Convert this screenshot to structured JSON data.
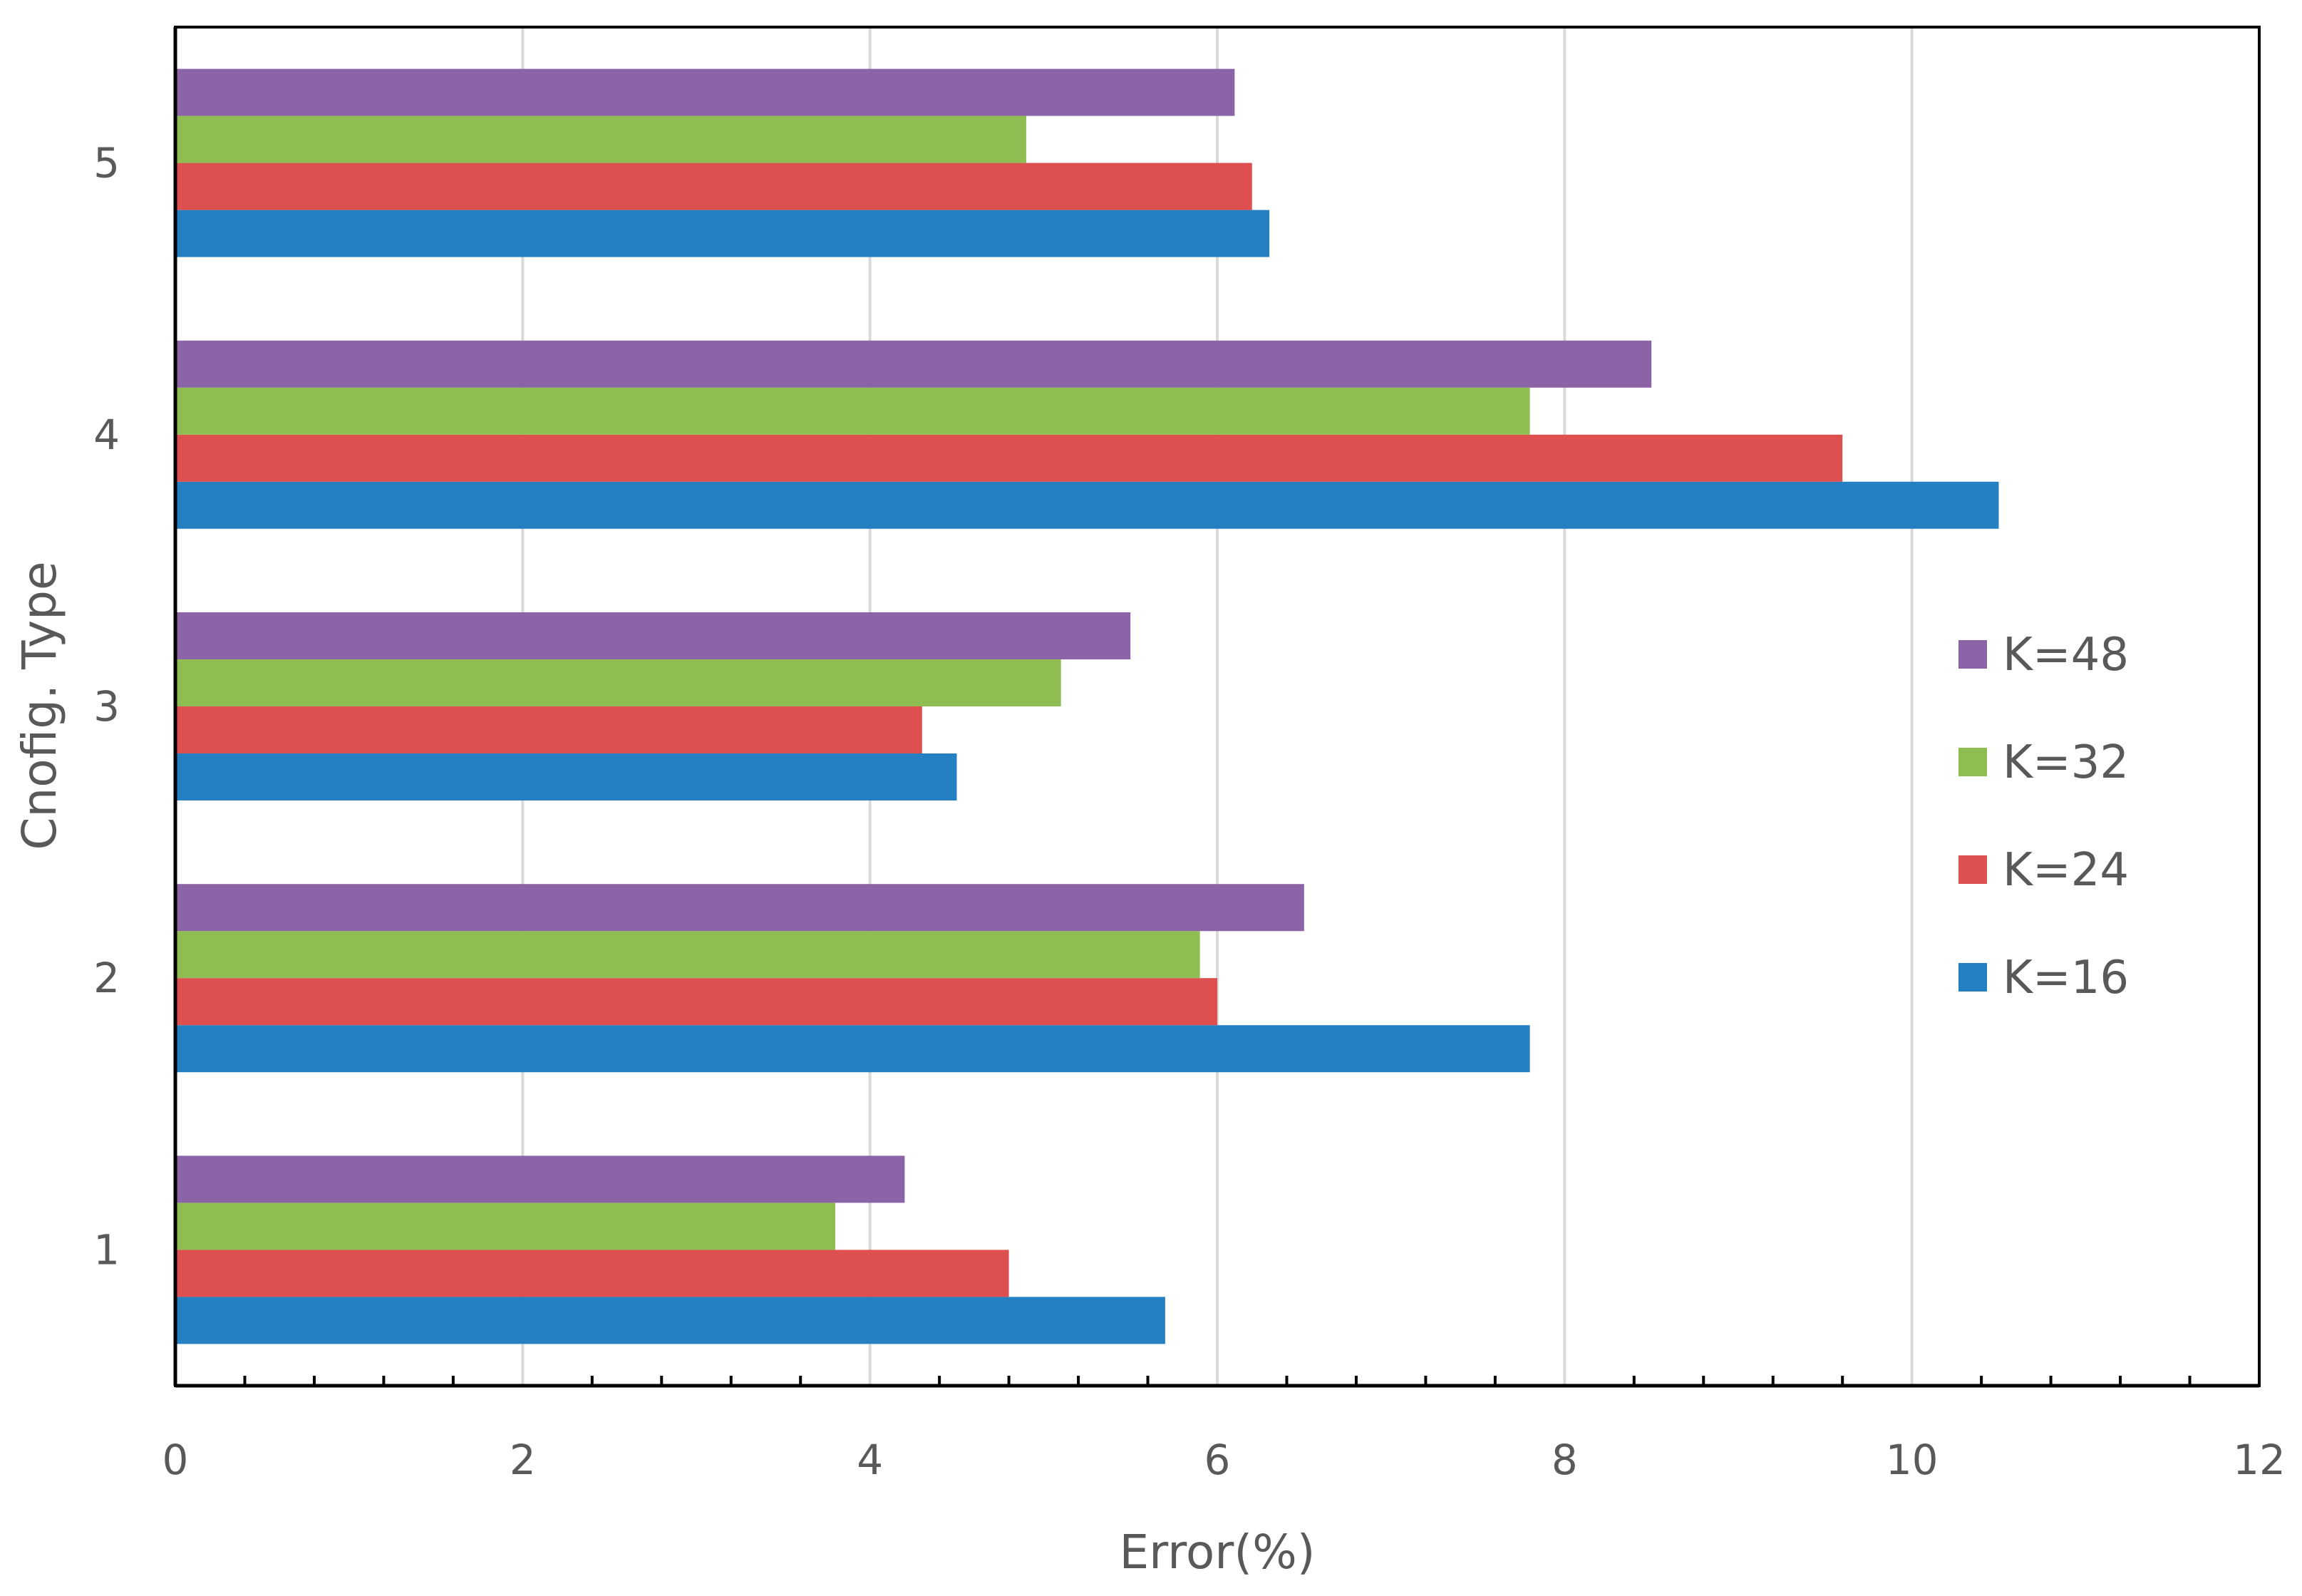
{
  "chart_data": {
    "type": "bar",
    "orientation": "horizontal",
    "title": "",
    "xlabel": "Error(%)",
    "ylabel": "Cnofig. Type",
    "xlim": [
      0,
      12
    ],
    "x_major_ticks": [
      0,
      2,
      4,
      6,
      8,
      10,
      12
    ],
    "x_major_tick_labels": [
      "0",
      "2",
      "4",
      "6",
      "8",
      "10",
      "12"
    ],
    "x_minor_step": 0.4,
    "grid": true,
    "legend_position": "right",
    "categories": [
      "1",
      "2",
      "3",
      "4",
      "5"
    ],
    "series": [
      {
        "name": "K=16",
        "color": "#2580c2",
        "values": [
          5.7,
          7.8,
          4.5,
          10.5,
          6.3
        ]
      },
      {
        "name": "K=24",
        "color": "#de4f4f",
        "values": [
          4.8,
          6.0,
          4.3,
          9.6,
          6.2
        ]
      },
      {
        "name": "K=32",
        "color": "#8fbd52",
        "values": [
          3.8,
          5.9,
          5.1,
          7.8,
          4.9
        ]
      },
      {
        "name": "K=48",
        "color": "#8a64a6",
        "values": [
          4.2,
          6.5,
          5.5,
          8.5,
          6.1
        ]
      }
    ],
    "legend_order": [
      "K=48",
      "K=32",
      "K=24",
      "K=16"
    ]
  }
}
